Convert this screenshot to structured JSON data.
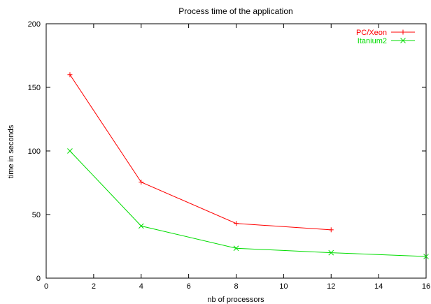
{
  "chart_data": {
    "type": "line",
    "title": "Process time of the application",
    "xlabel": "nb of processors",
    "ylabel": "time in seconds",
    "xlim": [
      0,
      16
    ],
    "ylim": [
      0,
      200
    ],
    "xticks": [
      "0",
      "2",
      "4",
      "6",
      "8",
      "10",
      "12",
      "14",
      "16"
    ],
    "yticks": [
      "0",
      "50",
      "100",
      "150",
      "200"
    ],
    "grid": false,
    "legend_position": "top-right",
    "series": [
      {
        "name": "PC/Xeon",
        "color": "#ff0000",
        "marker": "plus",
        "x": [
          1,
          4,
          8,
          12
        ],
        "y": [
          160,
          75.5,
          43,
          38
        ]
      },
      {
        "name": "Itanium2",
        "color": "#00dd00",
        "marker": "cross",
        "x": [
          1,
          4,
          8,
          12,
          16
        ],
        "y": [
          100,
          41,
          23.5,
          20,
          17
        ]
      }
    ]
  }
}
